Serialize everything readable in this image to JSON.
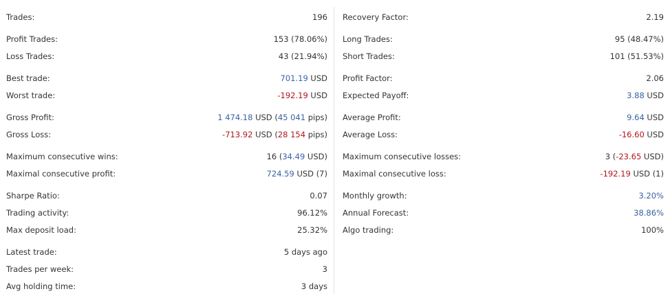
{
  "colors": {
    "positive": "#3a62a3",
    "negative": "#b3161d",
    "text": "#333333"
  },
  "left": {
    "trades": {
      "label": "Trades:",
      "value": "196"
    },
    "profit_trades": {
      "label": "Profit Trades:",
      "value": "153 (78.06%)"
    },
    "loss_trades": {
      "label": "Loss Trades:",
      "value": "43 (21.94%)"
    },
    "best_trade": {
      "label": "Best trade:",
      "num": "701.19",
      "unit": " USD"
    },
    "worst_trade": {
      "label": "Worst trade:",
      "num": "-192.19",
      "unit": " USD"
    },
    "gross_profit": {
      "label": "Gross Profit:",
      "num": "1 474.18",
      "unit": " USD (",
      "pips": "45 041",
      "pips_unit": " pips)"
    },
    "gross_loss": {
      "label": "Gross Loss:",
      "num": "-713.92",
      "unit": " USD (",
      "pips": "28 154",
      "pips_unit": " pips)"
    },
    "max_consec_wins": {
      "label": "Maximum consecutive wins:",
      "count": "16 (",
      "num": "34.49",
      "unit": " USD)"
    },
    "max_consec_profit": {
      "label": "Maximal consecutive profit:",
      "num": "724.59",
      "unit": " USD (7)"
    },
    "sharpe": {
      "label": "Sharpe Ratio:",
      "value": "0.07"
    },
    "trading_activity": {
      "label": "Trading activity:",
      "value": "96.12%"
    },
    "max_deposit_load": {
      "label": "Max deposit load:",
      "value": "25.32%"
    },
    "latest_trade": {
      "label": "Latest trade:",
      "value": "5 days ago"
    },
    "trades_per_week": {
      "label": "Trades per week:",
      "value": "3"
    },
    "avg_holding": {
      "label": "Avg holding time:",
      "value": "3 days"
    }
  },
  "right": {
    "recovery_factor": {
      "label": "Recovery Factor:",
      "value": "2.19"
    },
    "long_trades": {
      "label": "Long Trades:",
      "value": "95 (48.47%)"
    },
    "short_trades": {
      "label": "Short Trades:",
      "value": "101 (51.53%)"
    },
    "profit_factor": {
      "label": "Profit Factor:",
      "value": "2.06"
    },
    "expected_payoff": {
      "label": "Expected Payoff:",
      "num": "3.88",
      "unit": " USD"
    },
    "average_profit": {
      "label": "Average Profit:",
      "num": "9.64",
      "unit": " USD"
    },
    "average_loss": {
      "label": "Average Loss:",
      "num": "-16.60",
      "unit": " USD"
    },
    "max_consec_losses": {
      "label": "Maximum consecutive losses:",
      "count": "3 (",
      "num": "-23.65",
      "unit": " USD)"
    },
    "max_consec_loss": {
      "label": "Maximal consecutive loss:",
      "num": "-192.19",
      "unit": " USD (1)"
    },
    "monthly_growth": {
      "label": "Monthly growth:",
      "value": "3.20%"
    },
    "annual_forecast": {
      "label": "Annual Forecast:",
      "value": "38.86%"
    },
    "algo_trading": {
      "label": "Algo trading:",
      "value": "100%"
    }
  }
}
